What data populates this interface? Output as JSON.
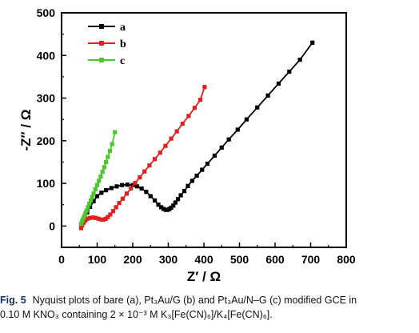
{
  "chart_data": {
    "type": "line",
    "xlabel": "Z′ / Ω",
    "ylabel": "-Z″ / Ω",
    "xlim": [
      0,
      800
    ],
    "ylim": [
      -50,
      500
    ],
    "xticks": [
      "0",
      "100",
      "200",
      "300",
      "400",
      "500",
      "600",
      "700",
      "800"
    ],
    "yticks": [
      "0",
      "100",
      "200",
      "300",
      "400",
      "500"
    ],
    "legend_position": "top-left",
    "series": [
      {
        "name": "a",
        "color": "#000000",
        "x": [
          55,
          60,
          65,
          72,
          80,
          90,
          100,
          112,
          125,
          140,
          155,
          170,
          185,
          200,
          212,
          225,
          238,
          250,
          262,
          272,
          280,
          287,
          293,
          298,
          303,
          308,
          314,
          320,
          327,
          335,
          345,
          355,
          367,
          380,
          395,
          410,
          430,
          450,
          470,
          495,
          520,
          550,
          580,
          610,
          640,
          670,
          705
        ],
        "y": [
          5,
          12,
          20,
          32,
          45,
          58,
          70,
          78,
          84,
          89,
          93,
          96,
          97,
          96,
          93,
          88,
          80,
          70,
          60,
          50,
          44,
          40,
          38,
          38,
          40,
          43,
          48,
          55,
          63,
          72,
          82,
          94,
          106,
          118,
          132,
          146,
          165,
          184,
          203,
          226,
          250,
          278,
          306,
          334,
          362,
          390,
          430
        ]
      },
      {
        "name": "b",
        "color": "#e02020",
        "x": [
          55,
          58,
          62,
          67,
          73,
          80,
          88,
          96,
          104,
          112,
          118,
          124,
          130,
          137,
          145,
          153,
          162,
          172,
          183,
          195,
          207,
          220,
          233,
          247,
          262,
          277,
          292,
          308,
          324,
          340,
          357,
          374,
          390,
          402
        ],
        "y": [
          -5,
          2,
          8,
          13,
          17,
          19,
          20,
          19,
          17,
          15,
          15,
          17,
          21,
          27,
          35,
          44,
          54,
          64,
          76,
          88,
          101,
          114,
          128,
          142,
          157,
          172,
          188,
          205,
          222,
          240,
          258,
          277,
          296,
          326
        ]
      },
      {
        "name": "c",
        "color": "#4cc72e",
        "x": [
          55,
          58,
          61,
          64,
          67,
          70,
          74,
          78,
          82,
          86,
          90,
          95,
          100,
          105,
          110,
          115,
          120,
          125,
          130,
          136,
          142,
          150
        ],
        "y": [
          5,
          12,
          18,
          24,
          30,
          36,
          44,
          52,
          60,
          68,
          76,
          86,
          96,
          106,
          116,
          127,
          138,
          150,
          162,
          176,
          192,
          220
        ]
      }
    ]
  },
  "caption": {
    "label": "Fig. 5",
    "line1": "Nyquist plots of bare (a), Pt₃Au/G (b) and Pt₃Au/N–G (c) modified GCE in",
    "line2": "0.10 M KNO₃ containing 2 × 10⁻³ M K₃[Fe(CN)₆]/K₄[Fe(CN)₆]."
  }
}
